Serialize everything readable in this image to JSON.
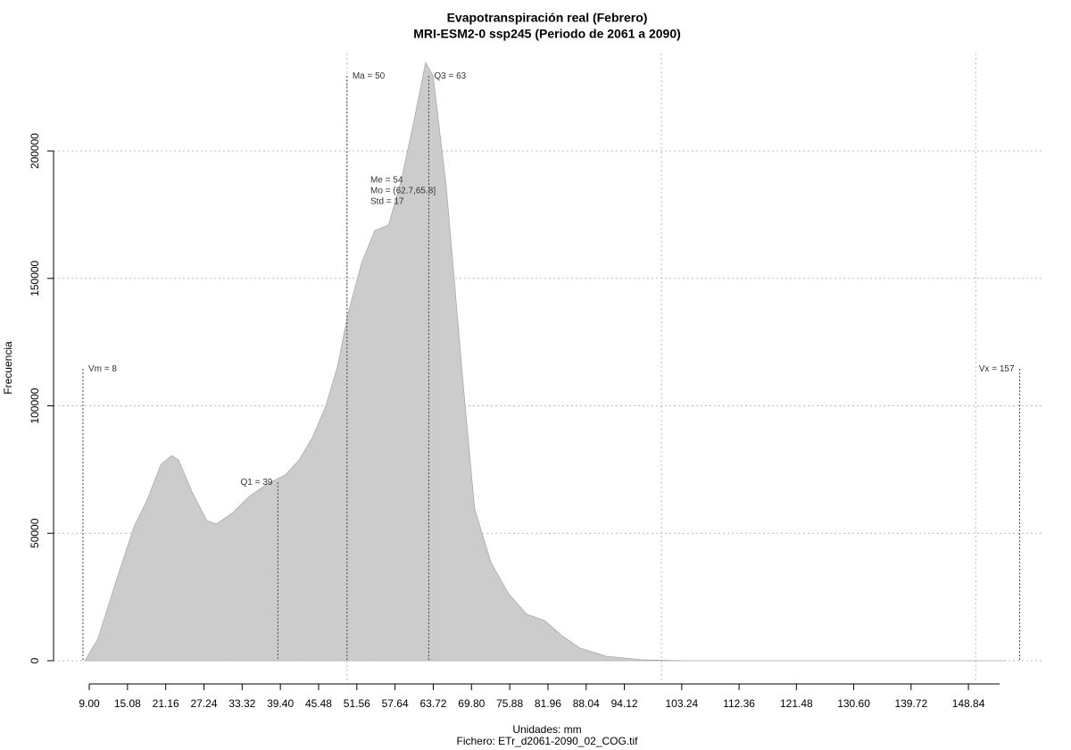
{
  "chart_data": {
    "type": "area",
    "title": "Evapotranspiración real (Febrero)",
    "subtitle": "MRI-ESM2-0 ssp245 (Periodo de 2061 a 2090)",
    "x_label": "Unidades: mm",
    "caption": "Fichero: ETr_d2061-2090_02_COG.tif",
    "y_label": "Frecuencia",
    "color": "#cccccc",
    "x": [
      8.3,
      10.4,
      13.3,
      16.1,
      18.2,
      20.4,
      22.1,
      23.2,
      25.3,
      27.7,
      29.2,
      31.7,
      34.6,
      37.4,
      40.2,
      42.4,
      44.5,
      46.6,
      48.5,
      50.2,
      52.3,
      54.4,
      56.6,
      58.7,
      60.8,
      62.5,
      63.7,
      65.8,
      68.6,
      70.3,
      72.9,
      75.7,
      78.6,
      81.4,
      84.2,
      87.1,
      91.3,
      97,
      104.1,
      154.9
    ],
    "values": [
      0,
      8757,
      31500,
      52500,
      63000,
      77000,
      80500,
      78800,
      66500,
      55000,
      53600,
      57800,
      64800,
      69400,
      72900,
      78800,
      87600,
      99800,
      115600,
      136600,
      155900,
      168800,
      170900,
      189200,
      213700,
      234700,
      229400,
      185700,
      105100,
      59600,
      38500,
      26300,
      18200,
      15800,
      9800,
      4900,
      1750,
      350,
      0,
      0
    ],
    "xlim": [
      3.32,
      160.9
    ],
    "ylim": [
      -8750,
      238200
    ],
    "xticks": [
      {
        "value": 9,
        "label": "9.00"
      },
      15.08,
      21.16,
      27.24,
      33.32,
      {
        "value": 39.4,
        "label": "39.40"
      },
      45.48,
      51.56,
      57.64,
      63.72,
      {
        "value": 69.8,
        "label": "69.80"
      },
      75.88,
      81.96,
      88.04,
      94.12,
      103.24,
      112.36,
      121.48,
      {
        "value": 130.6,
        "label": "130.60"
      },
      139.72,
      148.84
    ],
    "yticks": [
      0,
      50000,
      100000,
      150000,
      200000
    ],
    "xgrid": [
      50,
      100,
      150
    ],
    "grid": true,
    "annotations": [
      {
        "text": "Vm = 8",
        "x": 8,
        "y": 114500,
        "align": "left"
      },
      {
        "text": "Q1 = 39",
        "x": 39,
        "y": 70000,
        "align": "right"
      },
      {
        "text": "Ma = 50",
        "x": 50,
        "y": 229400,
        "align": "left"
      },
      {
        "text": "Q3 = 63",
        "x": 63,
        "y": 229400,
        "align": "left"
      },
      {
        "text": "Vx = 157",
        "x": 157,
        "y": 114500,
        "align": "right"
      }
    ],
    "stats": [
      "Me = 54",
      "Mo = (62.7,65.8]",
      "Std = 17"
    ]
  }
}
